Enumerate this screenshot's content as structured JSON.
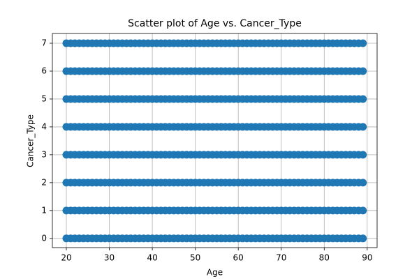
{
  "chart_data": {
    "type": "scatter",
    "title": "Scatter plot of Age vs. Cancer_Type",
    "xlabel": "Age",
    "ylabel": "Cancer_Type",
    "color": "#1f77b4",
    "grid": true,
    "xlim": [
      16.75,
      92.3
    ],
    "ylim": [
      -0.33,
      7.35
    ],
    "xticks": [
      20,
      30,
      40,
      50,
      60,
      70,
      80,
      90
    ],
    "yticks": [
      0,
      1,
      2,
      3,
      4,
      5,
      6,
      7
    ],
    "x": [
      20,
      21,
      22,
      23,
      24,
      25,
      26,
      27,
      28,
      29,
      30,
      31,
      32,
      33,
      34,
      35,
      36,
      37,
      38,
      39,
      40,
      41,
      42,
      43,
      44,
      45,
      46,
      47,
      48,
      49,
      50,
      51,
      52,
      53,
      54,
      55,
      56,
      57,
      58,
      59,
      60,
      61,
      62,
      63,
      64,
      65,
      66,
      67,
      68,
      69,
      70,
      71,
      72,
      73,
      74,
      75,
      76,
      77,
      78,
      79,
      80,
      81,
      82,
      83,
      84,
      85,
      86,
      87,
      88,
      89,
      20,
      21,
      22,
      23,
      24,
      25,
      26,
      27,
      28,
      29,
      30,
      31,
      32,
      33,
      34,
      35,
      36,
      37,
      38,
      39,
      40,
      41,
      42,
      43,
      44,
      45,
      46,
      47,
      48,
      49,
      50,
      51,
      52,
      53,
      54,
      55,
      56,
      57,
      58,
      59,
      60,
      61,
      62,
      63,
      64,
      65,
      66,
      67,
      68,
      69,
      70,
      71,
      72,
      73,
      74,
      75,
      76,
      77,
      78,
      79,
      80,
      81,
      82,
      83,
      84,
      85,
      86,
      87,
      88,
      89,
      20,
      21,
      22,
      23,
      24,
      25,
      26,
      27,
      28,
      29,
      30,
      31,
      32,
      33,
      34,
      35,
      36,
      37,
      38,
      39,
      40,
      41,
      42,
      43,
      44,
      45,
      46,
      47,
      48,
      49,
      50,
      51,
      52,
      53,
      54,
      55,
      56,
      57,
      58,
      59,
      60,
      61,
      62,
      63,
      64,
      65,
      66,
      67,
      68,
      69,
      70,
      71,
      72,
      73,
      74,
      75,
      76,
      77,
      78,
      79,
      80,
      81,
      82,
      83,
      84,
      85,
      86,
      87,
      88,
      89,
      20,
      21,
      22,
      23,
      24,
      25,
      26,
      27,
      28,
      29,
      30,
      31,
      32,
      33,
      34,
      35,
      36,
      37,
      38,
      39,
      40,
      41,
      42,
      43,
      44,
      45,
      46,
      47,
      48,
      49,
      50,
      51,
      52,
      53,
      54,
      55,
      56,
      57,
      58,
      59,
      60,
      61,
      62,
      63,
      64,
      65,
      66,
      67,
      68,
      69,
      70,
      71,
      72,
      73,
      74,
      75,
      76,
      77,
      78,
      79,
      80,
      81,
      82,
      83,
      84,
      85,
      86,
      87,
      88,
      89,
      20,
      21,
      22,
      23,
      24,
      25,
      26,
      27,
      28,
      29,
      30,
      31,
      32,
      33,
      34,
      35,
      36,
      37,
      38,
      39,
      40,
      41,
      42,
      43,
      44,
      45,
      46,
      47,
      48,
      49,
      50,
      51,
      52,
      53,
      54,
      55,
      56,
      57,
      58,
      59,
      60,
      61,
      62,
      63,
      64,
      65,
      66,
      67,
      68,
      69,
      70,
      71,
      72,
      73,
      74,
      75,
      76,
      77,
      78,
      79,
      80,
      81,
      82,
      83,
      84,
      85,
      86,
      87,
      88,
      89,
      20,
      21,
      22,
      23,
      24,
      25,
      26,
      27,
      28,
      29,
      30,
      31,
      32,
      33,
      34,
      35,
      36,
      37,
      38,
      39,
      40,
      41,
      42,
      43,
      44,
      45,
      46,
      47,
      48,
      49,
      50,
      51,
      52,
      53,
      54,
      55,
      56,
      57,
      58,
      59,
      60,
      61,
      62,
      63,
      64,
      65,
      66,
      67,
      68,
      69,
      70,
      71,
      72,
      73,
      74,
      75,
      76,
      77,
      78,
      79,
      80,
      81,
      82,
      83,
      84,
      85,
      86,
      87,
      88,
      89,
      20,
      21,
      22,
      23,
      24,
      25,
      26,
      27,
      28,
      29,
      30,
      31,
      32,
      33,
      34,
      35,
      36,
      37,
      38,
      39,
      40,
      41,
      42,
      43,
      44,
      45,
      46,
      47,
      48,
      49,
      50,
      51,
      52,
      53,
      54,
      55,
      56,
      57,
      58,
      59,
      60,
      61,
      62,
      63,
      64,
      65,
      66,
      67,
      68,
      69,
      70,
      71,
      72,
      73,
      74,
      75,
      76,
      77,
      78,
      79,
      80,
      81,
      82,
      83,
      84,
      85,
      86,
      87,
      88,
      89,
      20,
      21,
      22,
      23,
      24,
      25,
      26,
      27,
      28,
      29,
      30,
      31,
      32,
      33,
      34,
      35,
      36,
      37,
      38,
      39,
      40,
      41,
      42,
      43,
      44,
      45,
      46,
      47,
      48,
      49,
      50,
      51,
      52,
      53,
      54,
      55,
      56,
      57,
      58,
      59,
      60,
      61,
      62,
      63,
      64,
      65,
      66,
      67,
      68,
      69,
      70,
      71,
      72,
      73,
      74,
      75,
      76,
      77,
      78,
      79,
      80,
      81,
      82,
      83,
      84,
      85,
      86,
      87,
      88,
      89
    ],
    "values": [
      0,
      0,
      0,
      0,
      0,
      0,
      0,
      0,
      0,
      0,
      0,
      0,
      0,
      0,
      0,
      0,
      0,
      0,
      0,
      0,
      0,
      0,
      0,
      0,
      0,
      0,
      0,
      0,
      0,
      0,
      0,
      0,
      0,
      0,
      0,
      0,
      0,
      0,
      0,
      0,
      0,
      0,
      0,
      0,
      0,
      0,
      0,
      0,
      0,
      0,
      0,
      0,
      0,
      0,
      0,
      0,
      0,
      0,
      0,
      0,
      0,
      0,
      0,
      0,
      0,
      0,
      0,
      0,
      0,
      0,
      1,
      1,
      1,
      1,
      1,
      1,
      1,
      1,
      1,
      1,
      1,
      1,
      1,
      1,
      1,
      1,
      1,
      1,
      1,
      1,
      1,
      1,
      1,
      1,
      1,
      1,
      1,
      1,
      1,
      1,
      1,
      1,
      1,
      1,
      1,
      1,
      1,
      1,
      1,
      1,
      1,
      1,
      1,
      1,
      1,
      1,
      1,
      1,
      1,
      1,
      1,
      1,
      1,
      1,
      1,
      1,
      1,
      1,
      1,
      1,
      1,
      1,
      1,
      1,
      1,
      1,
      1,
      1,
      1,
      1,
      2,
      2,
      2,
      2,
      2,
      2,
      2,
      2,
      2,
      2,
      2,
      2,
      2,
      2,
      2,
      2,
      2,
      2,
      2,
      2,
      2,
      2,
      2,
      2,
      2,
      2,
      2,
      2,
      2,
      2,
      2,
      2,
      2,
      2,
      2,
      2,
      2,
      2,
      2,
      2,
      2,
      2,
      2,
      2,
      2,
      2,
      2,
      2,
      2,
      2,
      2,
      2,
      2,
      2,
      2,
      2,
      2,
      2,
      2,
      2,
      2,
      2,
      2,
      2,
      2,
      2,
      2,
      2,
      2,
      2,
      3,
      3,
      3,
      3,
      3,
      3,
      3,
      3,
      3,
      3,
      3,
      3,
      3,
      3,
      3,
      3,
      3,
      3,
      3,
      3,
      3,
      3,
      3,
      3,
      3,
      3,
      3,
      3,
      3,
      3,
      3,
      3,
      3,
      3,
      3,
      3,
      3,
      3,
      3,
      3,
      3,
      3,
      3,
      3,
      3,
      3,
      3,
      3,
      3,
      3,
      3,
      3,
      3,
      3,
      3,
      3,
      3,
      3,
      3,
      3,
      3,
      3,
      3,
      3,
      3,
      3,
      3,
      3,
      3,
      3,
      4,
      4,
      4,
      4,
      4,
      4,
      4,
      4,
      4,
      4,
      4,
      4,
      4,
      4,
      4,
      4,
      4,
      4,
      4,
      4,
      4,
      4,
      4,
      4,
      4,
      4,
      4,
      4,
      4,
      4,
      4,
      4,
      4,
      4,
      4,
      4,
      4,
      4,
      4,
      4,
      4,
      4,
      4,
      4,
      4,
      4,
      4,
      4,
      4,
      4,
      4,
      4,
      4,
      4,
      4,
      4,
      4,
      4,
      4,
      4,
      4,
      4,
      4,
      4,
      4,
      4,
      4,
      4,
      4,
      4,
      5,
      5,
      5,
      5,
      5,
      5,
      5,
      5,
      5,
      5,
      5,
      5,
      5,
      5,
      5,
      5,
      5,
      5,
      5,
      5,
      5,
      5,
      5,
      5,
      5,
      5,
      5,
      5,
      5,
      5,
      5,
      5,
      5,
      5,
      5,
      5,
      5,
      5,
      5,
      5,
      5,
      5,
      5,
      5,
      5,
      5,
      5,
      5,
      5,
      5,
      5,
      5,
      5,
      5,
      5,
      5,
      5,
      5,
      5,
      5,
      5,
      5,
      5,
      5,
      5,
      5,
      5,
      5,
      5,
      5,
      6,
      6,
      6,
      6,
      6,
      6,
      6,
      6,
      6,
      6,
      6,
      6,
      6,
      6,
      6,
      6,
      6,
      6,
      6,
      6,
      6,
      6,
      6,
      6,
      6,
      6,
      6,
      6,
      6,
      6,
      6,
      6,
      6,
      6,
      6,
      6,
      6,
      6,
      6,
      6,
      6,
      6,
      6,
      6,
      6,
      6,
      6,
      6,
      6,
      6,
      6,
      6,
      6,
      6,
      6,
      6,
      6,
      6,
      6,
      6,
      6,
      6,
      6,
      6,
      6,
      6,
      6,
      6,
      6,
      6,
      7,
      7,
      7,
      7,
      7,
      7,
      7,
      7,
      7,
      7,
      7,
      7,
      7,
      7,
      7,
      7,
      7,
      7,
      7,
      7,
      7,
      7,
      7,
      7,
      7,
      7,
      7,
      7,
      7,
      7,
      7,
      7,
      7,
      7,
      7,
      7,
      7,
      7,
      7,
      7,
      7,
      7,
      7,
      7,
      7,
      7,
      7,
      7,
      7,
      7,
      7,
      7,
      7,
      7,
      7,
      7,
      7,
      7,
      7,
      7,
      7,
      7,
      7,
      7,
      7,
      7,
      7,
      7,
      7,
      7
    ]
  }
}
